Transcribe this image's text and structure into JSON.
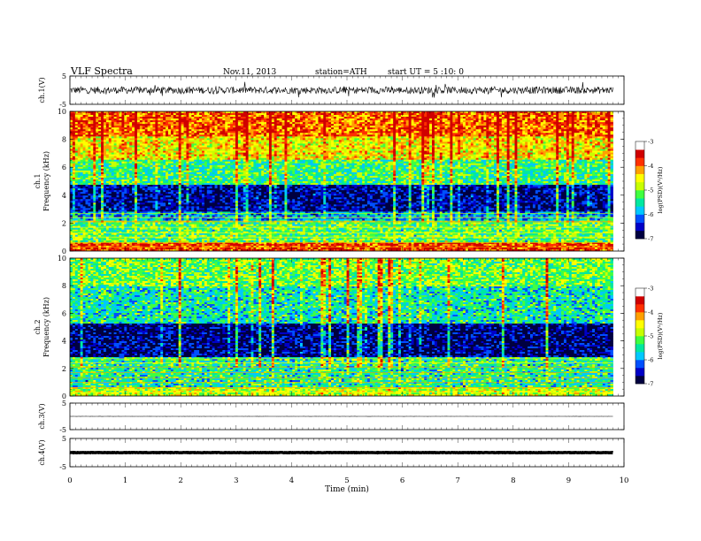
{
  "header": {
    "title": "VLF Spectra",
    "date": "Nov.11, 2013",
    "station": "station=ATH",
    "start_ut": "start UT =  5 :10: 0"
  },
  "chart_data": [
    {
      "type": "line",
      "panel": "ch1-waveform",
      "ylabel": "ch.1(V)",
      "ylim": [
        -5,
        5
      ],
      "yticks": [
        "5",
        "-5"
      ],
      "x_range_min": [
        0,
        9.8
      ],
      "description_values": {
        "amplitude_peak_V": 2.5,
        "baseline_V": 0
      }
    },
    {
      "type": "heatmap",
      "panel": "ch1-spectrogram",
      "ylabel": "ch.1\nFrequency  (kHz)",
      "ylim": [
        0,
        10
      ],
      "yticks": [
        "0",
        "2",
        "4",
        "6",
        "8",
        "10"
      ],
      "x_range_min": [
        0,
        9.8
      ],
      "band_profile": [
        {
          "f_from": 0,
          "f_to": 0.6,
          "level": -3.5
        },
        {
          "f_from": 0.6,
          "f_to": 2.2,
          "level": -5.0
        },
        {
          "f_from": 2.2,
          "f_to": 2.8,
          "level": -5.8
        },
        {
          "f_from": 2.8,
          "f_to": 4.8,
          "level": -6.6
        },
        {
          "f_from": 4.8,
          "f_to": 6.5,
          "level": -5.2
        },
        {
          "f_from": 6.5,
          "f_to": 8.2,
          "level": -4.3
        },
        {
          "f_from": 8.2,
          "f_to": 10,
          "level": -3.7
        }
      ],
      "colorbar": {
        "label": "log(PSD)(V²/Hz)",
        "ticks": [
          "-3",
          "-4",
          "-5",
          "-6",
          "-7"
        ],
        "range": [
          -7,
          -3
        ]
      }
    },
    {
      "type": "heatmap",
      "panel": "ch2-spectrogram",
      "ylabel": "ch.2\nFrequency  (kHz)",
      "ylim": [
        0,
        10
      ],
      "yticks": [
        "0",
        "2",
        "4",
        "6",
        "8",
        "10"
      ],
      "x_range_min": [
        0,
        9.8
      ],
      "band_profile": [
        {
          "f_from": 0,
          "f_to": 0.6,
          "level": -4.6
        },
        {
          "f_from": 0.6,
          "f_to": 2.8,
          "level": -5.3
        },
        {
          "f_from": 2.8,
          "f_to": 5.2,
          "level": -6.7
        },
        {
          "f_from": 5.2,
          "f_to": 8.0,
          "level": -5.4
        },
        {
          "f_from": 8.0,
          "f_to": 10,
          "level": -4.9
        }
      ],
      "colorbar": {
        "label": "log(PSD)(V²/Hz)",
        "ticks": [
          "-3",
          "-4",
          "-5",
          "-6",
          "-7"
        ],
        "range": [
          -7,
          -3
        ]
      }
    },
    {
      "type": "line",
      "panel": "ch3-waveform",
      "ylabel": "ch.3(V)",
      "ylim": [
        -5,
        5
      ],
      "yticks": [
        "5",
        "-5"
      ],
      "x_range_min": [
        0,
        9.8
      ],
      "description_values": {
        "amplitude_peak_V": 0.05,
        "baseline_V": 0
      }
    },
    {
      "type": "line",
      "panel": "ch4-waveform",
      "ylabel": "ch.4(V)",
      "ylim": [
        -5,
        5
      ],
      "yticks": [
        "5",
        "-5"
      ],
      "x_range_min": [
        0,
        9.8
      ],
      "description_values": {
        "amplitude_peak_V": 0.15,
        "baseline_V": 0
      }
    }
  ],
  "x_axis": {
    "label": "Time  (min)",
    "ticks": [
      "0",
      "1",
      "2",
      "3",
      "4",
      "5",
      "6",
      "7",
      "8",
      "9",
      "10"
    ],
    "range": [
      0,
      10
    ]
  },
  "colorscale": [
    "#000040",
    "#0000c8",
    "#0050ff",
    "#00c8ff",
    "#00e8a0",
    "#40ff40",
    "#c8ff00",
    "#ffff00",
    "#ffa000",
    "#ff3000",
    "#d00000",
    "#ffffff"
  ]
}
